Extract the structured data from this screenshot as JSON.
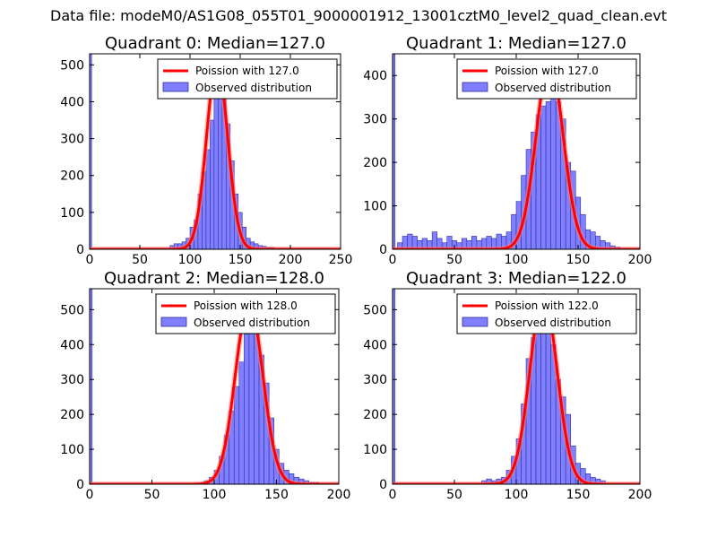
{
  "figure": {
    "suptitle": "Data file: modeM0/AS1G08_055T01_9000001912_13001cztM0_level2_quad_clean.evt"
  },
  "colors": {
    "hist_fill": "#7f7fff",
    "hist_edge": "#2f2fa6",
    "curve": "#ff0000",
    "curve_highlight": "#ff8080",
    "axis": "#000000"
  },
  "chart_data": [
    {
      "type": "bar",
      "title": "Quadrant 0: Median=127.0",
      "xlim": [
        0,
        250
      ],
      "ylim": [
        0,
        530
      ],
      "xticks": [
        0,
        50,
        100,
        150,
        200,
        250
      ],
      "yticks": [
        0,
        100,
        200,
        300,
        400,
        500
      ],
      "legend": [
        "Poission with 127.0",
        "Observed distribution"
      ],
      "legend_position": "top-right",
      "median": 127.0,
      "curve_peak": 505,
      "curve_sigma": 10.5,
      "bin_width": 4,
      "hist_bins": [
        {
          "x": 0,
          "w": 2,
          "y": 530
        },
        {
          "x": 80,
          "y": 10
        },
        {
          "x": 84,
          "y": 15
        },
        {
          "x": 88,
          "y": 15
        },
        {
          "x": 92,
          "y": 20
        },
        {
          "x": 96,
          "y": 30
        },
        {
          "x": 100,
          "y": 60
        },
        {
          "x": 104,
          "y": 80
        },
        {
          "x": 108,
          "y": 150
        },
        {
          "x": 112,
          "y": 210
        },
        {
          "x": 116,
          "y": 270
        },
        {
          "x": 120,
          "y": 350
        },
        {
          "x": 124,
          "y": 420
        },
        {
          "x": 128,
          "y": 510
        },
        {
          "x": 132,
          "y": 430
        },
        {
          "x": 136,
          "y": 340
        },
        {
          "x": 140,
          "y": 240
        },
        {
          "x": 144,
          "y": 150
        },
        {
          "x": 148,
          "y": 100
        },
        {
          "x": 152,
          "y": 60
        },
        {
          "x": 156,
          "y": 30
        },
        {
          "x": 160,
          "y": 20
        },
        {
          "x": 164,
          "y": 15
        },
        {
          "x": 168,
          "y": 10
        },
        {
          "x": 172,
          "y": 8
        },
        {
          "x": 176,
          "y": 5
        },
        {
          "x": 180,
          "y": 5
        }
      ]
    },
    {
      "type": "bar",
      "title": "Quadrant 1: Median=127.0",
      "xlim": [
        0,
        200
      ],
      "ylim": [
        0,
        450
      ],
      "xticks": [
        0,
        50,
        100,
        150,
        200
      ],
      "yticks": [
        0,
        100,
        200,
        300,
        400
      ],
      "legend": [
        "Poission with 127.0",
        "Observed distribution"
      ],
      "legend_position": "top-right",
      "median": 127.0,
      "curve_peak": 430,
      "curve_sigma": 11,
      "bin_width": 4,
      "hist_bins": [
        {
          "x": 0,
          "w": 2,
          "y": 450
        },
        {
          "x": 4,
          "y": 15
        },
        {
          "x": 8,
          "y": 30
        },
        {
          "x": 12,
          "y": 35
        },
        {
          "x": 16,
          "y": 30
        },
        {
          "x": 20,
          "y": 20
        },
        {
          "x": 24,
          "y": 25
        },
        {
          "x": 28,
          "y": 20
        },
        {
          "x": 32,
          "y": 40
        },
        {
          "x": 36,
          "y": 25
        },
        {
          "x": 40,
          "y": 15
        },
        {
          "x": 44,
          "y": 30
        },
        {
          "x": 48,
          "y": 20
        },
        {
          "x": 52,
          "y": 15
        },
        {
          "x": 56,
          "y": 25
        },
        {
          "x": 60,
          "y": 20
        },
        {
          "x": 64,
          "y": 30
        },
        {
          "x": 68,
          "y": 20
        },
        {
          "x": 72,
          "y": 25
        },
        {
          "x": 76,
          "y": 30
        },
        {
          "x": 80,
          "y": 25
        },
        {
          "x": 84,
          "y": 35
        },
        {
          "x": 88,
          "y": 30
        },
        {
          "x": 92,
          "y": 40
        },
        {
          "x": 96,
          "y": 80
        },
        {
          "x": 100,
          "y": 110
        },
        {
          "x": 104,
          "y": 170
        },
        {
          "x": 108,
          "y": 230
        },
        {
          "x": 112,
          "y": 270
        },
        {
          "x": 116,
          "y": 310
        },
        {
          "x": 120,
          "y": 330
        },
        {
          "x": 124,
          "y": 340
        },
        {
          "x": 128,
          "y": 350
        },
        {
          "x": 132,
          "y": 340
        },
        {
          "x": 136,
          "y": 300
        },
        {
          "x": 140,
          "y": 200
        },
        {
          "x": 144,
          "y": 180
        },
        {
          "x": 148,
          "y": 120
        },
        {
          "x": 152,
          "y": 80
        },
        {
          "x": 156,
          "y": 45
        },
        {
          "x": 160,
          "y": 40
        },
        {
          "x": 164,
          "y": 30
        },
        {
          "x": 168,
          "y": 20
        },
        {
          "x": 172,
          "y": 15
        },
        {
          "x": 176,
          "y": 8
        },
        {
          "x": 180,
          "y": 5
        }
      ]
    },
    {
      "type": "bar",
      "title": "Quadrant 2: Median=128.0",
      "xlim": [
        0,
        200
      ],
      "ylim": [
        0,
        560
      ],
      "xticks": [
        0,
        50,
        100,
        150,
        200
      ],
      "yticks": [
        0,
        100,
        200,
        300,
        400,
        500
      ],
      "legend": [
        "Poission with 128.0",
        "Observed distribution"
      ],
      "legend_position": "top-right",
      "median": 128.0,
      "curve_peak": 520,
      "curve_sigma": 11,
      "bin_width": 4,
      "hist_bins": [
        {
          "x": 0,
          "w": 2,
          "y": 560
        },
        {
          "x": 92,
          "y": 10
        },
        {
          "x": 96,
          "y": 20
        },
        {
          "x": 100,
          "y": 40
        },
        {
          "x": 104,
          "y": 80
        },
        {
          "x": 108,
          "y": 140
        },
        {
          "x": 112,
          "y": 210
        },
        {
          "x": 116,
          "y": 280
        },
        {
          "x": 120,
          "y": 350
        },
        {
          "x": 124,
          "y": 430
        },
        {
          "x": 128,
          "y": 500
        },
        {
          "x": 132,
          "y": 450
        },
        {
          "x": 136,
          "y": 370
        },
        {
          "x": 140,
          "y": 290
        },
        {
          "x": 144,
          "y": 190
        },
        {
          "x": 148,
          "y": 100
        },
        {
          "x": 152,
          "y": 60
        },
        {
          "x": 156,
          "y": 40
        },
        {
          "x": 160,
          "y": 30
        },
        {
          "x": 164,
          "y": 20
        },
        {
          "x": 168,
          "y": 15
        },
        {
          "x": 172,
          "y": 10
        },
        {
          "x": 176,
          "y": 5
        },
        {
          "x": 180,
          "y": 5
        }
      ]
    },
    {
      "type": "bar",
      "title": "Quadrant 3: Median=122.0",
      "xlim": [
        0,
        200
      ],
      "ylim": [
        0,
        560
      ],
      "xticks": [
        0,
        50,
        100,
        150,
        200
      ],
      "yticks": [
        0,
        100,
        200,
        300,
        400,
        500
      ],
      "legend": [
        "Poission with 122.0",
        "Observed distribution"
      ],
      "legend_position": "top-right",
      "median": 122.0,
      "curve_peak": 540,
      "curve_sigma": 11,
      "bin_width": 4,
      "hist_bins": [
        {
          "x": 0,
          "w": 2,
          "y": 560
        },
        {
          "x": 72,
          "y": 10
        },
        {
          "x": 76,
          "y": 15
        },
        {
          "x": 80,
          "y": 10
        },
        {
          "x": 84,
          "y": 15
        },
        {
          "x": 88,
          "y": 20
        },
        {
          "x": 92,
          "y": 40
        },
        {
          "x": 96,
          "y": 80
        },
        {
          "x": 100,
          "y": 130
        },
        {
          "x": 104,
          "y": 230
        },
        {
          "x": 108,
          "y": 360
        },
        {
          "x": 112,
          "y": 420
        },
        {
          "x": 116,
          "y": 500
        },
        {
          "x": 120,
          "y": 530
        },
        {
          "x": 124,
          "y": 450
        },
        {
          "x": 128,
          "y": 400
        },
        {
          "x": 132,
          "y": 300
        },
        {
          "x": 136,
          "y": 250
        },
        {
          "x": 140,
          "y": 200
        },
        {
          "x": 144,
          "y": 110
        },
        {
          "x": 148,
          "y": 60
        },
        {
          "x": 152,
          "y": 45
        },
        {
          "x": 156,
          "y": 30
        },
        {
          "x": 160,
          "y": 20
        },
        {
          "x": 164,
          "y": 15
        },
        {
          "x": 168,
          "y": 10
        }
      ]
    }
  ]
}
